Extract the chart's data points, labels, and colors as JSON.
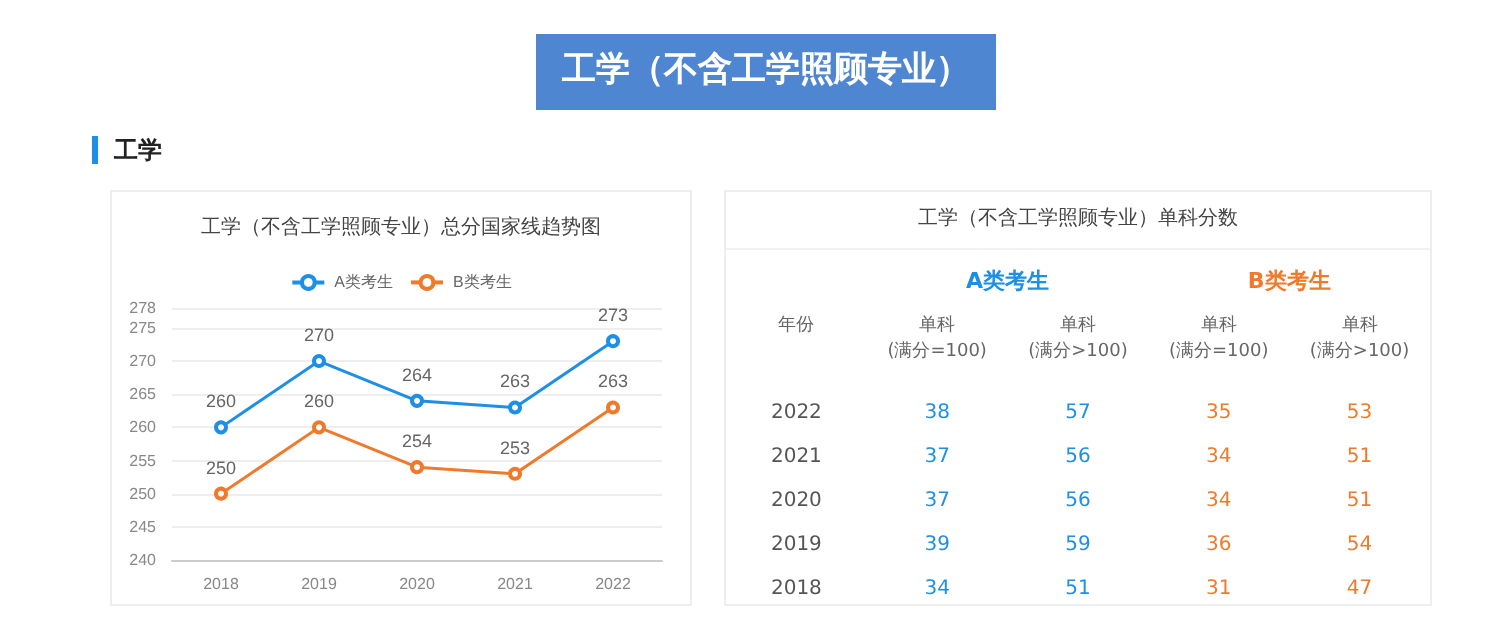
{
  "chart_data": [
    {
      "type": "line",
      "title": "工学（不含工学照顾专业）总分国家线趋势图",
      "annotations": [
        "工学（不含工学照顾专业）",
        "工学"
      ],
      "categories": [
        "2018",
        "2019",
        "2020",
        "2021",
        "2022"
      ],
      "series": [
        {
          "name": "A类考生",
          "color": "#1e8fe6",
          "values": [
            260,
            270,
            264,
            263,
            273
          ]
        },
        {
          "name": "B类考生",
          "color": "#f07a2c",
          "values": [
            250,
            260,
            254,
            253,
            263
          ]
        }
      ],
      "ylim": [
        240,
        278
      ],
      "yticks": [
        240,
        245,
        250,
        255,
        260,
        265,
        270,
        275,
        278
      ],
      "grid": "y",
      "legend": "top",
      "marker": "circle",
      "line_style": "solid",
      "data_labels": true
    },
    {
      "type": "heatmap",
      "data_labels": true,
      "title": "工学（不含工学照顾专业）单科分数",
      "ylabel": "年份",
      "annotations": [
        "A类考生",
        "B类考生"
      ],
      "categories": [
        "单科\n(满分=100)",
        "单科\n(满分>100)",
        "单科\n(满分=100)",
        "单科\n(满分>100)"
      ],
      "colors": [
        "#1e8fe6",
        "#1e8fe6",
        "#f07a2c",
        "#f07a2c"
      ],
      "y_categories": [
        "2022",
        "2021",
        "2020",
        "2019",
        "2018"
      ],
      "cells": [
        [
          38,
          57,
          35,
          53
        ],
        [
          37,
          56,
          34,
          51
        ],
        [
          37,
          56,
          34,
          51
        ],
        [
          39,
          59,
          36,
          54
        ],
        [
          34,
          51,
          31,
          47
        ]
      ]
    }
  ]
}
